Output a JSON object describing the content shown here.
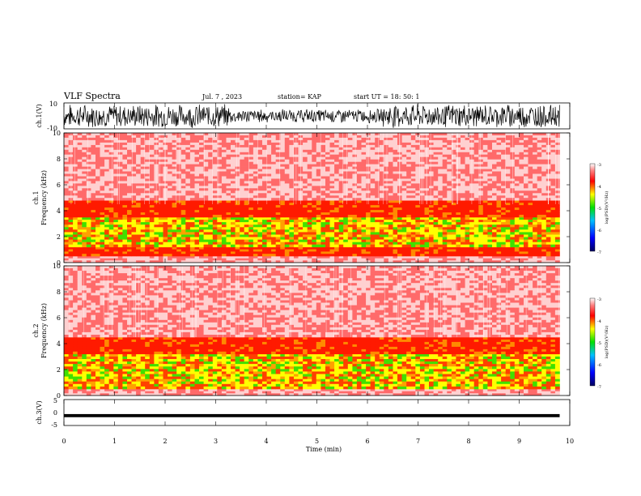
{
  "header": {
    "title": "VLF Spectra",
    "date": "Jul. 7 , 2023",
    "station": "station= KAP",
    "start": "start UT = 18: 50: 1"
  },
  "chart_data": [
    {
      "type": "line",
      "panel": "ch1-waveform",
      "ylabel": "ch.1(V)",
      "ylim": [
        -10,
        10
      ],
      "yticks": [
        "10",
        "-10"
      ],
      "xlim": [
        0,
        10
      ],
      "x_extent_min": [
        0,
        9.8
      ],
      "description_values": {
        "approx_amplitude_V": 8,
        "quiet_interval_min": [
          3.3,
          6.3
        ]
      }
    },
    {
      "type": "heatmap",
      "panel": "ch1-spectrogram",
      "ylabel": "ch.1\nFrequency (kHz)",
      "ylabel_line1": "ch.1",
      "ylabel_line2": "Frequency (kHz)",
      "ylim": [
        0,
        10
      ],
      "yticks": [
        "0",
        "2",
        "4",
        "6",
        "8",
        "10"
      ],
      "x_extent_min": [
        0,
        9.8
      ],
      "bands_khz": [
        {
          "range": [
            0,
            0.5
          ],
          "level": -3.3
        },
        {
          "range": [
            0.5,
            1.2
          ],
          "level": -4.0
        },
        {
          "range": [
            1.2,
            3.5
          ],
          "level": -5.0
        },
        {
          "range": [
            3.5,
            4.8
          ],
          "level": -4.0
        },
        {
          "range": [
            4.8,
            10
          ],
          "level": -3.2
        }
      ],
      "colorbar": {
        "label": "log(PSD)(V²/Hz)",
        "min": -7,
        "max": -3,
        "ticks": [
          "-3",
          "-4",
          "-5",
          "-6",
          "-7"
        ]
      }
    },
    {
      "type": "heatmap",
      "panel": "ch2-spectrogram",
      "ylabel_line1": "ch.2",
      "ylabel_line2": "Frequency (kHz)",
      "ylim": [
        0,
        10
      ],
      "yticks": [
        "0",
        "2",
        "4",
        "6",
        "8",
        "10"
      ],
      "x_extent_min": [
        0,
        9.8
      ],
      "bands_khz": [
        {
          "range": [
            0,
            0.5
          ],
          "level": -3.3
        },
        {
          "range": [
            0.5,
            3.2
          ],
          "level": -5.0
        },
        {
          "range": [
            3.2,
            4.5
          ],
          "level": -4.0
        },
        {
          "range": [
            4.5,
            10
          ],
          "level": -3.2
        }
      ],
      "colorbar": {
        "label": "log(PSD)(V²/Hz)",
        "min": -7,
        "max": -3,
        "ticks": [
          "-3",
          "-4",
          "-5",
          "-6",
          "-7"
        ]
      }
    },
    {
      "type": "line",
      "panel": "ch3-waveform",
      "ylabel": "ch.3(V)",
      "ylim": [
        -5,
        5
      ],
      "yticks": [
        "5",
        "0",
        "-5"
      ],
      "x_extent_min": [
        0,
        9.8
      ],
      "description_values": {
        "baseline_V": -1.2,
        "band_halfwidth_V": 0.6
      }
    }
  ],
  "xaxis": {
    "label": "Time (min)",
    "ticks": [
      "0",
      "1",
      "2",
      "3",
      "4",
      "5",
      "6",
      "7",
      "8",
      "9",
      "10"
    ],
    "range": [
      0,
      10
    ]
  },
  "colors": {
    "spectro_low": "#0000a0",
    "spectro_mid": "#00e000",
    "spectro_midhigh": "#ffff00",
    "spectro_high": "#ff0000",
    "spectro_max": "#ffffff",
    "trace": "#000000"
  }
}
